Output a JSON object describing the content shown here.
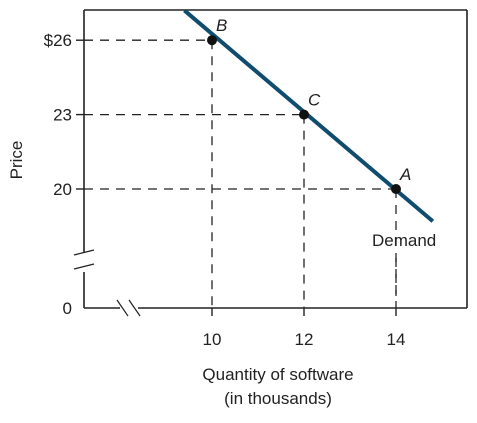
{
  "chart_data": {
    "type": "line",
    "title": "",
    "xlabel_line1": "Quantity of software",
    "xlabel_line2": "(in thousands)",
    "ylabel": "Price",
    "x_ticks": [
      {
        "value": 10,
        "label": "10"
      },
      {
        "value": 12,
        "label": "12"
      },
      {
        "value": 14,
        "label": "14"
      }
    ],
    "y_ticks": [
      {
        "value": 26,
        "label": "$26"
      },
      {
        "value": 23,
        "label": "23"
      },
      {
        "value": 20,
        "label": "20"
      }
    ],
    "y_origin_label": "0",
    "axis_breaks": {
      "x": true,
      "y": true
    },
    "series": [
      {
        "name": "Demand",
        "line": [
          [
            9.4,
            27.2
          ],
          [
            14.8,
            18.7
          ]
        ],
        "points": [
          {
            "label": "B",
            "x": 10,
            "y": 26
          },
          {
            "label": "C",
            "x": 12,
            "y": 23
          },
          {
            "label": "A",
            "x": 14,
            "y": 20
          }
        ]
      }
    ],
    "colors": {
      "line": "#0f4c6e",
      "point": "#111111",
      "axis": "#222222",
      "guide": "#222222"
    },
    "grid": false
  }
}
